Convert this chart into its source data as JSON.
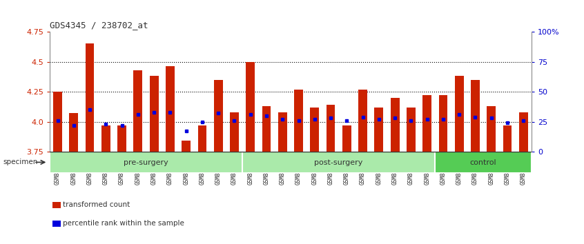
{
  "title": "GDS4345 / 238702_at",
  "categories": [
    "GSM842012",
    "GSM842013",
    "GSM842014",
    "GSM842015",
    "GSM842016",
    "GSM842017",
    "GSM842018",
    "GSM842019",
    "GSM842020",
    "GSM842021",
    "GSM842022",
    "GSM842023",
    "GSM842024",
    "GSM842025",
    "GSM842026",
    "GSM842027",
    "GSM842028",
    "GSM842029",
    "GSM842030",
    "GSM842031",
    "GSM842032",
    "GSM842033",
    "GSM842034",
    "GSM842035",
    "GSM842036",
    "GSM842037",
    "GSM842038",
    "GSM842039",
    "GSM842040",
    "GSM842041"
  ],
  "red_values": [
    4.25,
    4.07,
    4.65,
    3.97,
    3.97,
    4.43,
    4.38,
    4.46,
    3.84,
    3.97,
    4.35,
    4.08,
    4.5,
    4.13,
    4.08,
    4.27,
    4.12,
    4.14,
    3.97,
    4.27,
    4.12,
    4.2,
    4.12,
    4.22,
    4.22,
    4.38,
    4.35,
    4.13,
    3.97,
    4.08
  ],
  "blue_values": [
    4.01,
    3.97,
    4.1,
    3.98,
    3.97,
    4.06,
    4.08,
    4.08,
    3.92,
    4.0,
    4.07,
    4.01,
    4.06,
    4.05,
    4.02,
    4.01,
    4.02,
    4.03,
    4.01,
    4.04,
    4.02,
    4.03,
    4.01,
    4.02,
    4.02,
    4.06,
    4.04,
    4.03,
    3.99,
    4.01
  ],
  "groups": [
    {
      "label": "pre-surgery",
      "start": 0,
      "end": 12
    },
    {
      "label": "post-surgery",
      "start": 12,
      "end": 24
    },
    {
      "label": "control",
      "start": 24,
      "end": 30
    }
  ],
  "group_colors": [
    "#aaeaaa",
    "#aaeaaa",
    "#55cc55"
  ],
  "ymin": 3.75,
  "ymax": 4.75,
  "yticks": [
    3.75,
    4.0,
    4.25,
    4.5,
    4.75
  ],
  "y2ticks": [
    0,
    25,
    50,
    75,
    100
  ],
  "y2labels": [
    "0",
    "25",
    "50",
    "75",
    "100%"
  ],
  "dotted_lines": [
    4.0,
    4.25,
    4.5
  ],
  "bar_color": "#CC2200",
  "dot_color": "#0000DD",
  "bar_width": 0.55,
  "background_color": "#ffffff",
  "tick_label_color_left": "#CC2200",
  "tick_label_color_right": "#0000CC",
  "legend_items": [
    {
      "color": "#CC2200",
      "label": "transformed count"
    },
    {
      "color": "#0000DD",
      "label": "percentile rank within the sample"
    }
  ],
  "specimen_label": "specimen"
}
